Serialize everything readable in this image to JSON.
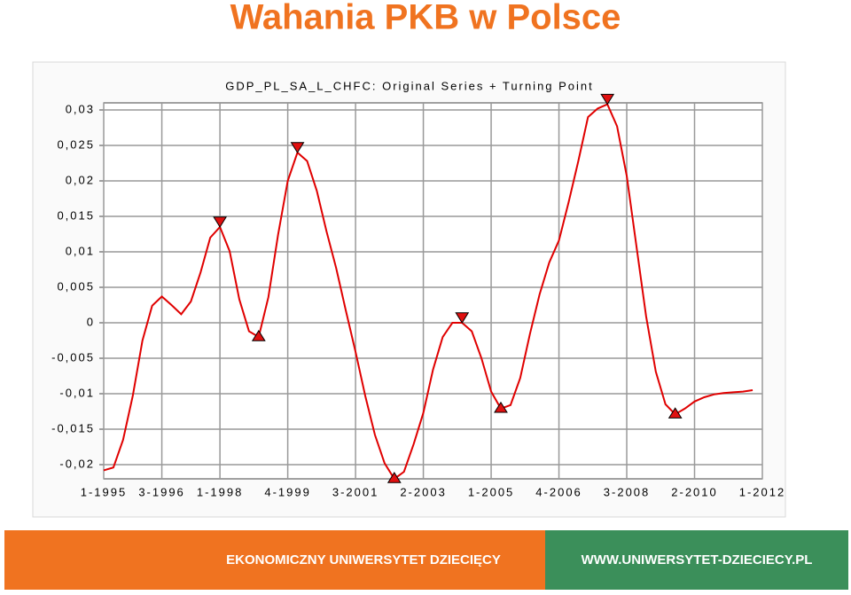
{
  "title": "Wahania PKB w Polsce",
  "chart_data": {
    "type": "line",
    "title": "GDP_PL_SA_L_CHFC: Original Series + Turning Point",
    "x": [
      1995,
      1995.25,
      1995.5,
      1995.75,
      1996,
      1996.25,
      1996.5,
      1996.75,
      1997,
      1997.25,
      1997.5,
      1997.75,
      1998,
      1998.25,
      1998.5,
      1998.75,
      1999,
      1999.25,
      1999.5,
      1999.75,
      2000,
      2000.25,
      2000.5,
      2000.75,
      2001,
      2001.25,
      2001.5,
      2001.75,
      2002,
      2002.25,
      2002.5,
      2002.75,
      2003,
      2003.25,
      2003.5,
      2003.75,
      2004,
      2004.25,
      2004.5,
      2004.75,
      2005,
      2005.25,
      2005.5,
      2005.75,
      2006,
      2006.25,
      2006.5,
      2006.75,
      2007,
      2007.25,
      2007.5,
      2007.75,
      2008,
      2008.25,
      2008.5,
      2008.75,
      2009,
      2009.25,
      2009.5,
      2009.75,
      2010,
      2010.25,
      2010.5,
      2010.75,
      2011,
      2011.25,
      2011.5,
      2011.75
    ],
    "series": [
      {
        "color": "#e00000",
        "values": [
          -0.0208,
          -0.0204,
          -0.0165,
          -0.0103,
          -0.0025,
          0.0024,
          0.0037,
          0.0025,
          0.0012,
          0.003,
          0.0071,
          0.012,
          0.0135,
          0.0101,
          0.0033,
          -0.0012,
          -0.002,
          0.0036,
          0.0124,
          0.02,
          0.024,
          0.0228,
          0.0186,
          0.0129,
          0.0077,
          0.0017,
          -0.0041,
          -0.0103,
          -0.0158,
          -0.0198,
          -0.022,
          -0.021,
          -0.0171,
          -0.0127,
          -0.0066,
          -0.002,
          0,
          0,
          -0.0012,
          -0.005,
          -0.0097,
          -0.0121,
          -0.0116,
          -0.0078,
          -0.0016,
          0.004,
          0.0085,
          0.0116,
          0.017,
          0.0228,
          0.029,
          0.0302,
          0.0308,
          0.0277,
          0.0207,
          0.0108,
          0.0009,
          -0.0069,
          -0.0115,
          -0.0129,
          -0.0121,
          -0.0111,
          -0.0105,
          -0.0101,
          -0.0099,
          -0.0098,
          -0.0097,
          -0.0095
        ]
      }
    ],
    "peaks": {
      "x": [
        1998,
        2000,
        2004.25,
        2008
      ],
      "values": [
        0.0135,
        0.024,
        0,
        0.0308
      ]
    },
    "troughs": {
      "x": [
        1999,
        2002.5,
        2005.25,
        2009.75
      ],
      "values": [
        -0.002,
        -0.022,
        -0.0121,
        -0.0129
      ]
    },
    "marker_color": "#e01010",
    "xlim": [
      1995,
      2012
    ],
    "xticks": [
      {
        "value": 1995,
        "label": "1-1995"
      },
      {
        "value": 1996.5,
        "label": "3-1996"
      },
      {
        "value": 1998,
        "label": "1-1998"
      },
      {
        "value": 1999.75,
        "label": "4-1999"
      },
      {
        "value": 2001.5,
        "label": "3-2001"
      },
      {
        "value": 2003.25,
        "label": "2-2003"
      },
      {
        "value": 2005,
        "label": "1-2005"
      },
      {
        "value": 2006.75,
        "label": "4-2006"
      },
      {
        "value": 2008.5,
        "label": "3-2008"
      },
      {
        "value": 2010.25,
        "label": "2-2010"
      },
      {
        "value": 2012,
        "label": "1-2012"
      }
    ],
    "ylim": [
      -0.022,
      0.031
    ],
    "yticks": [
      {
        "value": -0.02,
        "label": "-0,02"
      },
      {
        "value": -0.015,
        "label": "-0,015"
      },
      {
        "value": -0.01,
        "label": "-0,01"
      },
      {
        "value": -0.005,
        "label": "-0,005"
      },
      0,
      {
        "value": 0.005,
        "label": "0,005"
      },
      {
        "value": 0.01,
        "label": "0,01"
      },
      {
        "value": 0.015,
        "label": "0,015"
      },
      {
        "value": 0.02,
        "label": "0,02"
      },
      {
        "value": 0.025,
        "label": "0,025"
      },
      {
        "value": 0.03,
        "label": "0,03"
      }
    ],
    "grid": true
  },
  "footer": {
    "left": "EKONOMICZNY UNIWERSYTET DZIECIĘCY",
    "right": "WWW.UNIWERSYTET-DZIECIECY.PL"
  }
}
